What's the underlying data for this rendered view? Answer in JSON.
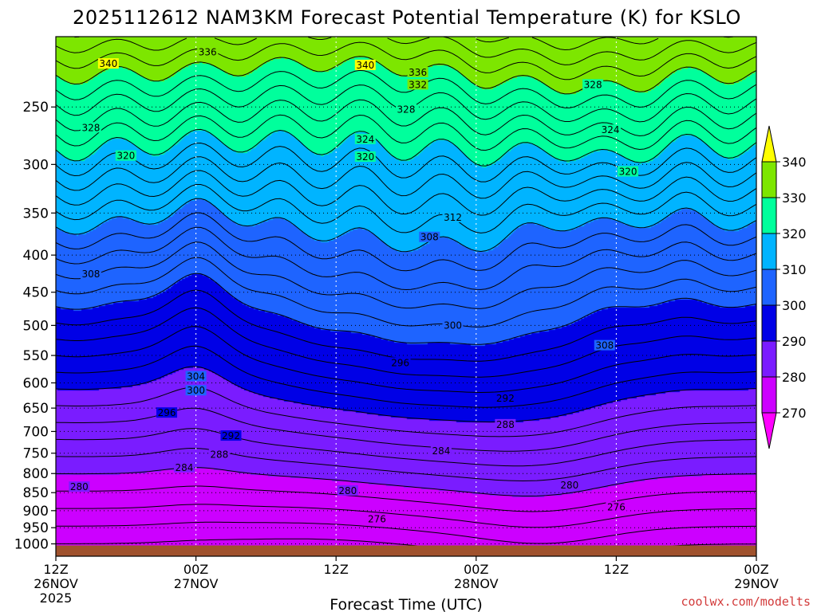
{
  "chart_data": {
    "type": "contour",
    "title": "2025112612 NAM3KM Forecast Potential Temperature (K) for KSLO",
    "xlabel": "Forecast Time (UTC)",
    "x_ticks": [
      {
        "hour": 0,
        "line1": "12Z",
        "line2": "26NOV",
        "line3": "2025"
      },
      {
        "hour": 12,
        "line1": "00Z",
        "line2": "27NOV",
        "line3": ""
      },
      {
        "hour": 24,
        "line1": "12Z",
        "line2": "",
        "line3": ""
      },
      {
        "hour": 36,
        "line1": "00Z",
        "line2": "28NOV",
        "line3": ""
      },
      {
        "hour": 48,
        "line1": "12Z",
        "line2": "",
        "line3": ""
      },
      {
        "hour": 60,
        "line1": "00Z",
        "line2": "29NOV",
        "line3": ""
      }
    ],
    "x_range_hours": [
      0,
      60
    ],
    "y_axis": "pressure (hPa), log scale, inverted",
    "y_ticks": [
      250,
      300,
      350,
      400,
      450,
      500,
      550,
      600,
      650,
      700,
      750,
      800,
      850,
      900,
      950,
      1000
    ],
    "y_range": [
      200,
      1040
    ],
    "grid": "dotted",
    "contour_interval": 2,
    "fill_levels": [
      {
        "min": 265,
        "max": 270,
        "color": "#ff00ff"
      },
      {
        "min": 270,
        "max": 280,
        "color": "#cc00ff"
      },
      {
        "min": 280,
        "max": 290,
        "color": "#7a1cff"
      },
      {
        "min": 290,
        "max": 300,
        "color": "#0000e6"
      },
      {
        "min": 300,
        "max": 310,
        "color": "#1e64ff"
      },
      {
        "min": 310,
        "max": 320,
        "color": "#00b4ff"
      },
      {
        "min": 320,
        "max": 330,
        "color": "#00ff9c"
      },
      {
        "min": 330,
        "max": 340,
        "color": "#7de600"
      },
      {
        "min": 340,
        "max": 350,
        "color": "#ffff00"
      }
    ],
    "colorbar_ticks": [
      340,
      330,
      320,
      310,
      300,
      290,
      280,
      270
    ],
    "ground_color": "#a0522d",
    "contour_labels": [
      {
        "value": 340,
        "hour": 4.5,
        "p": 218
      },
      {
        "value": 336,
        "hour": 13.0,
        "p": 210
      },
      {
        "value": 340,
        "hour": 26.5,
        "p": 219
      },
      {
        "value": 336,
        "hour": 31.0,
        "p": 224
      },
      {
        "value": 332,
        "hour": 31.0,
        "p": 233
      },
      {
        "value": 328,
        "hour": 3.0,
        "p": 267
      },
      {
        "value": 328,
        "hour": 30.0,
        "p": 252
      },
      {
        "value": 328,
        "hour": 46.0,
        "p": 233
      },
      {
        "value": 324,
        "hour": 26.5,
        "p": 277
      },
      {
        "value": 324,
        "hour": 47.5,
        "p": 269
      },
      {
        "value": 320,
        "hour": 6.0,
        "p": 292
      },
      {
        "value": 320,
        "hour": 26.5,
        "p": 293
      },
      {
        "value": 320,
        "hour": 49.0,
        "p": 307
      },
      {
        "value": 312,
        "hour": 34.0,
        "p": 355
      },
      {
        "value": 308,
        "hour": 3.0,
        "p": 425
      },
      {
        "value": 308,
        "hour": 32.0,
        "p": 378
      },
      {
        "value": 308,
        "hour": 47.0,
        "p": 533
      },
      {
        "value": 304,
        "hour": 12.0,
        "p": 588
      },
      {
        "value": 300,
        "hour": 34.0,
        "p": 500
      },
      {
        "value": 300,
        "hour": 12.0,
        "p": 615
      },
      {
        "value": 296,
        "hour": 9.5,
        "p": 660
      },
      {
        "value": 296,
        "hour": 29.5,
        "p": 563
      },
      {
        "value": 292,
        "hour": 15.0,
        "p": 710
      },
      {
        "value": 292,
        "hour": 38.5,
        "p": 630
      },
      {
        "value": 288,
        "hour": 14.0,
        "p": 753
      },
      {
        "value": 288,
        "hour": 38.5,
        "p": 685
      },
      {
        "value": 284,
        "hour": 11.0,
        "p": 785
      },
      {
        "value": 284,
        "hour": 33.0,
        "p": 745
      },
      {
        "value": 280,
        "hour": 2.0,
        "p": 835
      },
      {
        "value": 280,
        "hour": 25.0,
        "p": 845
      },
      {
        "value": 280,
        "hour": 44.0,
        "p": 830
      },
      {
        "value": 276,
        "hour": 48.0,
        "p": 890
      },
      {
        "value": 276,
        "hour": 27.5,
        "p": 925
      }
    ]
  },
  "credit": "coolwx.com/modelts"
}
